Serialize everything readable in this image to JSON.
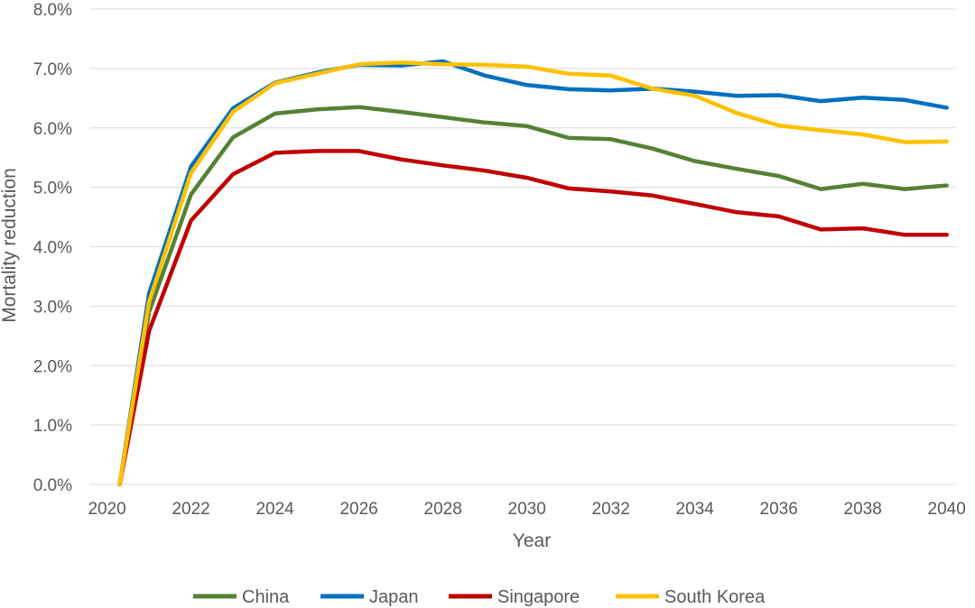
{
  "chart_data": {
    "type": "line",
    "title": "",
    "xlabel": "Year",
    "ylabel": "Mortality reduction",
    "x": [
      2020.3,
      2021,
      2022,
      2023,
      2024,
      2025,
      2026,
      2027,
      2028,
      2029,
      2030,
      2031,
      2032,
      2033,
      2034,
      2035,
      2036,
      2037,
      2038,
      2039,
      2040
    ],
    "xlim": [
      2019.6,
      2040.2
    ],
    "ylim": [
      0,
      8
    ],
    "x_ticks": [
      "2020",
      "2022",
      "2024",
      "2026",
      "2028",
      "2030",
      "2032",
      "2034",
      "2036",
      "2038",
      "2040"
    ],
    "y_ticks": [
      "0.0%",
      "1.0%",
      "2.0%",
      "3.0%",
      "4.0%",
      "5.0%",
      "6.0%",
      "7.0%",
      "8.0%"
    ],
    "grid": true,
    "legend_position": "bottom",
    "series": [
      {
        "name": "China",
        "color": "#548235",
        "values": [
          0.0,
          2.9,
          4.88,
          5.84,
          6.24,
          6.31,
          6.35,
          6.27,
          6.18,
          6.09,
          6.03,
          5.83,
          5.81,
          5.65,
          5.44,
          5.31,
          5.19,
          4.97,
          5.06,
          4.97,
          5.03
        ]
      },
      {
        "name": "Japan",
        "color": "#0070c0",
        "values": [
          0.0,
          3.21,
          5.35,
          6.33,
          6.76,
          6.93,
          7.06,
          7.05,
          7.12,
          6.88,
          6.72,
          6.65,
          6.63,
          6.66,
          6.61,
          6.54,
          6.55,
          6.45,
          6.51,
          6.47,
          6.34
        ]
      },
      {
        "name": "Singapore",
        "color": "#c00000",
        "values": [
          0.0,
          2.58,
          4.44,
          5.22,
          5.58,
          5.61,
          5.61,
          5.47,
          5.37,
          5.28,
          5.16,
          4.98,
          4.93,
          4.86,
          4.72,
          4.58,
          4.51,
          4.29,
          4.31,
          4.2,
          4.2
        ]
      },
      {
        "name": "South Korea",
        "color": "#ffc000",
        "values": [
          0.0,
          3.07,
          5.24,
          6.27,
          6.75,
          6.91,
          7.07,
          7.1,
          7.07,
          7.06,
          7.03,
          6.91,
          6.88,
          6.66,
          6.54,
          6.25,
          6.04,
          5.96,
          5.89,
          5.76,
          5.77
        ]
      }
    ]
  }
}
